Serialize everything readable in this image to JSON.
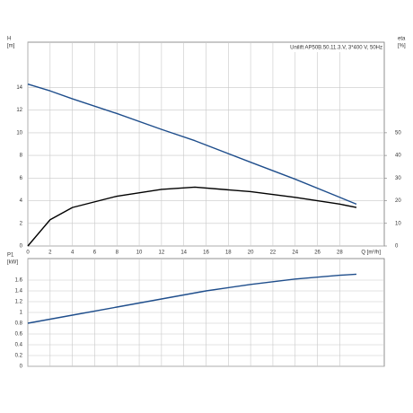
{
  "chart_data": [
    {
      "type": "line",
      "title": "Unilift AP50B.50.11.3.V, 3*400 V, 50Hz",
      "ylabel": "H",
      "yunit": "[m]",
      "y2label": "eta",
      "y2unit": "[%]",
      "xlabel": "Q [m³/h]",
      "x": [
        0,
        2,
        4,
        8,
        12,
        15,
        20,
        24,
        28,
        29.5
      ],
      "series": [
        {
          "color": "#1f4e8c",
          "values": [
            14.3,
            13.7,
            13.0,
            11.7,
            10.3,
            9.3,
            7.4,
            5.9,
            4.3,
            3.7
          ]
        },
        {
          "color": "#000000",
          "axis": "y2",
          "values": [
            0,
            11.6,
            17,
            22,
            25,
            26,
            24,
            21.5,
            18.5,
            17
          ]
        }
      ],
      "xlim": [
        0,
        32
      ],
      "xticks": [
        0,
        2,
        4,
        6,
        8,
        10,
        12,
        14,
        16,
        18,
        20,
        22,
        24,
        26,
        28
      ],
      "ylim": [
        0,
        18
      ],
      "yticks": [
        0,
        2,
        4,
        6,
        8,
        10,
        12,
        14
      ],
      "y2lim": [
        0,
        90
      ],
      "y2ticks": [
        0,
        10,
        20,
        30,
        40,
        50
      ],
      "grid": true
    },
    {
      "type": "line",
      "ylabel": "P1",
      "yunit": "[kW]",
      "x": [
        0,
        4,
        8,
        12,
        16,
        20,
        24,
        28,
        29.5
      ],
      "series": [
        {
          "color": "#1f4e8c",
          "values": [
            0.8,
            0.95,
            1.1,
            1.25,
            1.4,
            1.52,
            1.62,
            1.69,
            1.71
          ]
        }
      ],
      "xlim": [
        0,
        32
      ],
      "xticks": [
        0,
        2,
        4,
        6,
        8,
        10,
        12,
        14,
        16,
        18,
        20,
        22,
        24,
        26,
        28
      ],
      "ylim": [
        0,
        2
      ],
      "yticks": [
        0,
        0.2,
        0.4,
        0.6,
        0.8,
        1,
        1.2,
        1.4,
        1.6
      ],
      "grid": true
    }
  ]
}
